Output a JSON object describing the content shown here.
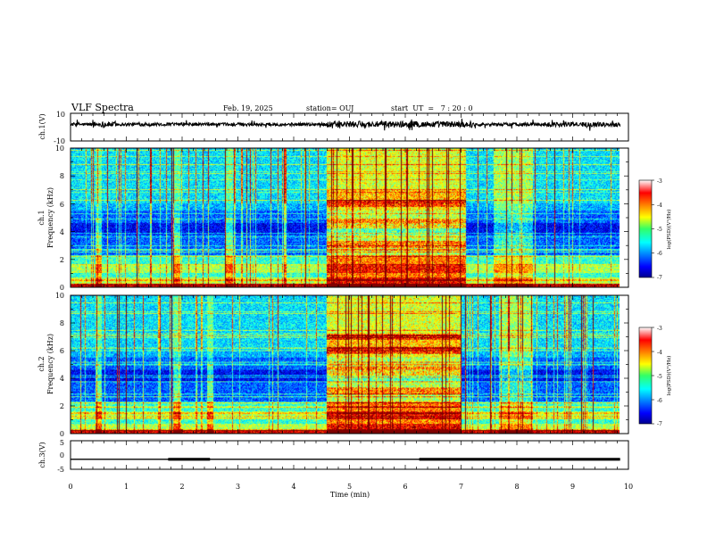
{
  "header": {
    "title": "VLF Spectra",
    "date": "Feb. 19, 2025",
    "station": "station= OUJ",
    "start": "start  UT  =   7 : 20 : 0"
  },
  "chart_data": [
    {
      "type": "line",
      "panel": "ch1-waveform",
      "ylabel": "ch.1(V)",
      "ylim": [
        -10,
        10
      ],
      "yticks": [
        "10",
        "-10"
      ],
      "xlim": [
        0,
        10
      ],
      "baseline": 2.0,
      "color": "#000000"
    },
    {
      "type": "heatmap",
      "panel": "ch1-spectrogram",
      "ylabel": "ch.1\nFrequency (kHz)",
      "ylabel_line1": "ch.1",
      "ylabel_line2": "Frequency (kHz)",
      "ylim": [
        0,
        10
      ],
      "yticks": [
        "0",
        "2",
        "4",
        "6",
        "8",
        "10"
      ],
      "xlim": [
        0,
        9.85
      ],
      "colorscale": "jet",
      "zlim": [
        -7,
        -3
      ],
      "colorbar_ticks": [
        "-3",
        "-4",
        "-5",
        "-6",
        "-7"
      ],
      "colorbar_label": "log(PSD)(V²/Hz)",
      "intense_interval_min": [
        4.6,
        7.1
      ],
      "secondary_interval_min": [
        7.6,
        8.3
      ],
      "burst_times_min": [
        0.5,
        1.9,
        2.85
      ]
    },
    {
      "type": "heatmap",
      "panel": "ch2-spectrogram",
      "ylabel": "ch.2\nFrequency (kHz)",
      "ylabel_line1": "ch.2",
      "ylabel_line2": "Frequency (kHz)",
      "ylim": [
        0,
        10
      ],
      "yticks": [
        "0",
        "2",
        "4",
        "6",
        "8",
        "10"
      ],
      "xlim": [
        0,
        9.85
      ],
      "colorscale": "jet",
      "zlim": [
        -7,
        -3
      ],
      "colorbar_ticks": [
        "-3",
        "-4",
        "-5",
        "-6",
        "-7"
      ],
      "colorbar_label": "log(PSD)(V²/Hz)",
      "intense_interval_min": [
        4.6,
        7.0
      ],
      "secondary_interval_min": [
        7.7,
        8.3
      ],
      "burst_times_min": [
        0.5,
        1.9,
        2.5
      ]
    },
    {
      "type": "line",
      "panel": "ch3-digital",
      "ylabel": "ch.3(V)",
      "ylim": [
        -5,
        5
      ],
      "yticks": [
        "5",
        "0",
        "-5"
      ],
      "xlim": [
        0,
        10
      ],
      "level_v": -1.5,
      "thick_segments_min": [
        [
          1.75,
          2.5
        ],
        [
          6.25,
          9.85
        ]
      ],
      "xticks": [
        "0",
        "1",
        "2",
        "3",
        "4",
        "5",
        "6",
        "7",
        "8",
        "9",
        "10"
      ],
      "xlabel": "Time (min)"
    }
  ]
}
